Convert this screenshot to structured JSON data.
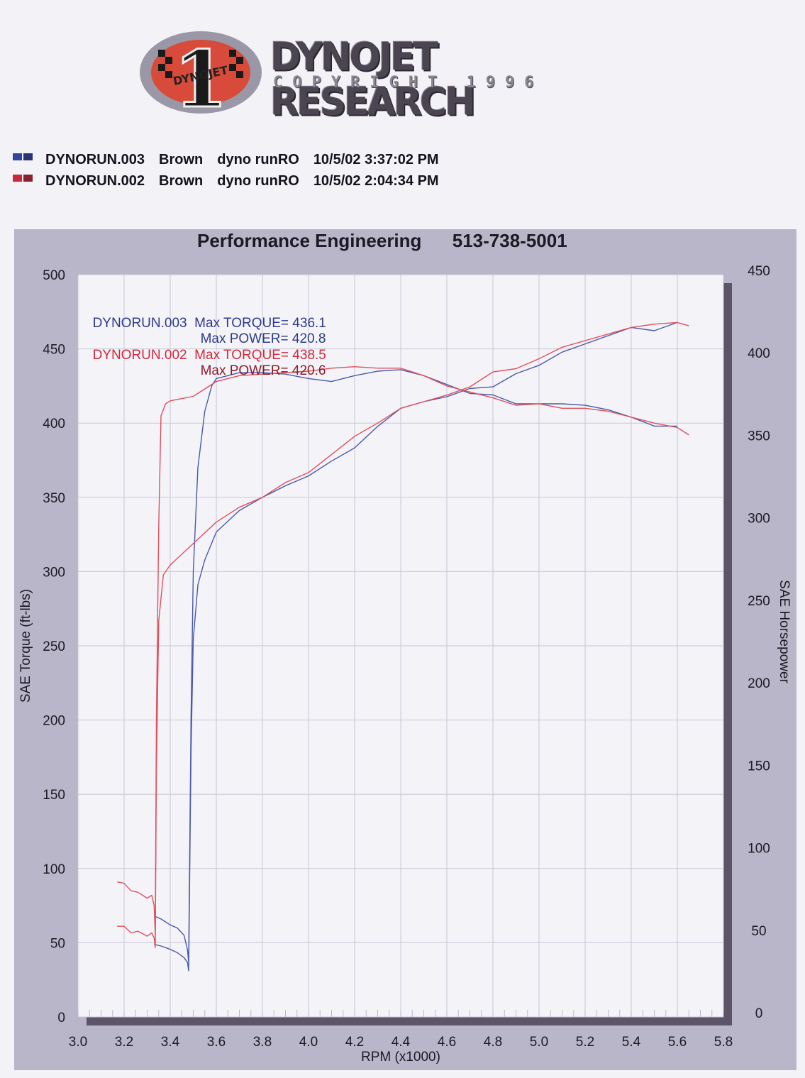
{
  "header": {
    "logo_badge_text": "DYNOJET",
    "logo_badge_number": "1",
    "brand": "DYNOJET RESEARCH",
    "copyright": "COPYRIGHT 1996"
  },
  "runs": [
    {
      "file": "DYNORUN.003",
      "name": "Brown",
      "desc": "dyno runRO",
      "timestamp": "10/5/02 3:37:02 PM",
      "color": "#3a4a9a",
      "swatch": [
        "#3344a0",
        "#2a3378"
      ]
    },
    {
      "file": "DYNORUN.002",
      "name": "Brown",
      "desc": "dyno runRO",
      "timestamp": "10/5/02 2:04:34 PM",
      "color": "#c8283a",
      "swatch": [
        "#c8283a",
        "#8a2030"
      ]
    }
  ],
  "chart_title": "Performance Engineering      513-738-5001",
  "annotations": [
    {
      "run": "DYNORUN.003",
      "torque_label": "Max TORQUE= 436.1",
      "power_label": "Max POWER= 420.8",
      "color": "#2e3a8a"
    },
    {
      "run": "DYNORUN.002",
      "torque_label": "Max TORQUE= 438.5",
      "power_label": "Max POWER= 420.6",
      "color": "#d02a3c",
      "power_color": "#8a1c2a"
    }
  ],
  "chart_data": {
    "type": "line",
    "title": "Performance Engineering 513-738-5001",
    "xlabel": "RPM (x1000)",
    "ylabel": "SAE Torque (ft-lbs)",
    "y2label": "SAE Horsepower",
    "xlim": [
      3.0,
      5.8
    ],
    "ylim": [
      0,
      500
    ],
    "y2lim": [
      0,
      450
    ],
    "xticks": [
      "3.0",
      "3.2",
      "3.4",
      "3.6",
      "3.8",
      "4.0",
      "4.2",
      "4.4",
      "4.6",
      "4.8",
      "5.0",
      "5.2",
      "5.4",
      "5.6",
      "5.8"
    ],
    "yticks": [
      "0",
      "50",
      "100",
      "150",
      "200",
      "250",
      "300",
      "350",
      "400",
      "450",
      "500"
    ],
    "y2ticks": [
      "0",
      "50",
      "100",
      "150",
      "200",
      "250",
      "300",
      "350",
      "400",
      "450"
    ],
    "grid": true,
    "series": [
      {
        "name": "DYNORUN.003 Torque",
        "axis": "left",
        "color": "#4a5aa8",
        "x": [
          3.33,
          3.36,
          3.4,
          3.43,
          3.46,
          3.475,
          3.48,
          3.49,
          3.5,
          3.52,
          3.55,
          3.58,
          3.6,
          3.65,
          3.7,
          3.8,
          3.9,
          4.0,
          4.1,
          4.2,
          4.3,
          4.4,
          4.5,
          4.6,
          4.7,
          4.8,
          4.9,
          5.0,
          5.1,
          5.2,
          5.3,
          5.4,
          5.5,
          5.6
        ],
        "y": [
          68,
          66,
          62,
          60,
          55,
          45,
          37,
          200,
          300,
          370,
          408,
          425,
          430,
          432,
          434,
          434,
          433,
          430,
          428,
          432,
          435,
          436,
          432,
          426,
          420,
          419,
          413,
          413,
          413,
          412,
          409,
          404,
          398,
          398
        ]
      },
      {
        "name": "DYNORUN.003 Power",
        "axis": "right",
        "color": "#4a5aa8",
        "x": [
          3.33,
          3.36,
          3.4,
          3.43,
          3.46,
          3.475,
          3.48,
          3.49,
          3.5,
          3.52,
          3.55,
          3.6,
          3.7,
          3.8,
          3.9,
          4.0,
          4.1,
          4.2,
          4.3,
          4.4,
          4.5,
          4.6,
          4.7,
          4.8,
          4.9,
          5.0,
          5.1,
          5.2,
          5.3,
          5.4,
          5.5,
          5.6
        ],
        "y": [
          44,
          43,
          41,
          39,
          36,
          33,
          28,
          160,
          229,
          262,
          277,
          294,
          307,
          315,
          322,
          328,
          337,
          345,
          358,
          369,
          373,
          376,
          381,
          382,
          390,
          395,
          403,
          408,
          413,
          418,
          416,
          421
        ]
      },
      {
        "name": "DYNORUN.002 Torque",
        "axis": "left",
        "color": "#e0505c",
        "x": [
          3.17,
          3.2,
          3.23,
          3.26,
          3.3,
          3.32,
          3.33,
          3.335,
          3.34,
          3.35,
          3.36,
          3.38,
          3.4,
          3.5,
          3.6,
          3.7,
          3.8,
          3.9,
          4.0,
          4.1,
          4.2,
          4.3,
          4.4,
          4.5,
          4.6,
          4.7,
          4.8,
          4.9,
          5.0,
          5.1,
          5.2,
          5.3,
          5.4,
          5.5,
          5.6,
          5.65
        ],
        "y": [
          91,
          90,
          85,
          84,
          80,
          82,
          75,
          55,
          200,
          330,
          405,
          413,
          415,
          418,
          428,
          432,
          433,
          434,
          435,
          437,
          438,
          437,
          437,
          432,
          425,
          421,
          417,
          412,
          413,
          410,
          410,
          408,
          404,
          400,
          397,
          392
        ]
      },
      {
        "name": "DYNORUN.002 Power",
        "axis": "right",
        "color": "#e0505c",
        "x": [
          3.17,
          3.2,
          3.23,
          3.26,
          3.3,
          3.32,
          3.33,
          3.335,
          3.34,
          3.35,
          3.37,
          3.4,
          3.5,
          3.6,
          3.7,
          3.8,
          3.9,
          4.0,
          4.1,
          4.2,
          4.3,
          4.4,
          4.5,
          4.6,
          4.7,
          4.8,
          4.9,
          5.0,
          5.1,
          5.2,
          5.3,
          5.4,
          5.5,
          5.6,
          5.65
        ],
        "y": [
          55,
          55,
          51,
          52,
          49,
          51,
          48,
          42,
          150,
          240,
          268,
          274,
          287,
          300,
          309,
          315,
          324,
          330,
          341,
          352,
          360,
          369,
          373,
          377,
          382,
          391,
          393,
          399,
          406,
          410,
          414,
          418,
          420,
          421,
          419
        ]
      }
    ]
  }
}
